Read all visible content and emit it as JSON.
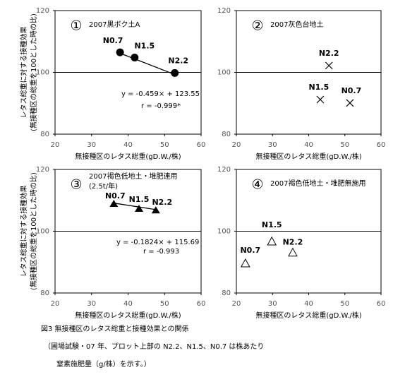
{
  "chart_data": [
    {
      "type": "scatter",
      "panel_label": "①",
      "title": "2007黒ボク土A",
      "marker": "filled-circle",
      "x": [
        37.8,
        41.8,
        52.8
      ],
      "values": [
        106.5,
        104.8,
        99.8
      ],
      "point_labels": [
        "N0.7",
        "N1.5",
        "N2.2"
      ],
      "fit": {
        "x": [
          37.8,
          52.8
        ],
        "values": [
          106.2,
          99.3
        ]
      },
      "annotations": [
        "y = -0.459× + 123.55",
        "r = -0.999*"
      ],
      "xlim": [
        20,
        60
      ],
      "xticks": [
        20,
        30,
        40,
        50,
        60
      ],
      "ylim": [
        80,
        120
      ],
      "yticks": [
        80,
        100,
        120
      ],
      "hline": 100,
      "ylabel": [
        "レタス総重に対する接種効果",
        "(無接種区の総重を100とした時の比)"
      ],
      "xlabel": "無接種区のレタス総重(gD.W./株)"
    },
    {
      "type": "scatter",
      "panel_label": "②",
      "title": "2007灰色台地土",
      "marker": "x",
      "x": [
        51.4,
        43.2,
        45.6
      ],
      "values": [
        90.1,
        91.2,
        102.2
      ],
      "point_labels": [
        "N0.7",
        "N1.5",
        "N2.2"
      ],
      "xlim": [
        20,
        60
      ],
      "xticks": [
        20,
        30,
        40,
        50,
        60
      ],
      "ylim": [
        80,
        120
      ],
      "yticks": [
        80,
        100,
        120
      ],
      "hline": 100,
      "xlabel": "無接種区のレタス総重(gD.W./株)"
    },
    {
      "type": "scatter",
      "panel_label": "③",
      "title": "2007褐色低地土・堆肥連用",
      "subtitle": "(2.5t/年)",
      "marker": "filled-triangle",
      "x": [
        36.1,
        43,
        47.6
      ],
      "values": [
        108.8,
        107.2,
        106.7
      ],
      "point_labels": [
        "N0.7",
        "N1.5",
        "N2.2"
      ],
      "fit": {
        "x": [
          36.1,
          47.6
        ],
        "values": [
          109.1,
          107
        ]
      },
      "annotations": [
        "y = -0.1824× + 115.69",
        "r = -0.993"
      ],
      "xlim": [
        20,
        60
      ],
      "xticks": [
        20,
        30,
        40,
        50,
        60
      ],
      "ylim": [
        80,
        120
      ],
      "yticks": [
        80,
        100,
        120
      ],
      "hline": 100,
      "ylabel": [
        "レタス総重に対する接種効果",
        "(無接種区の総重を100とした時の比)"
      ],
      "xlabel": "無接種区のレタス総重(gD.W./株)"
    },
    {
      "type": "scatter",
      "panel_label": "④",
      "title": "2007褐色低地土・堆肥無施用",
      "marker": "open-triangle",
      "x": [
        22.5,
        29.8,
        35.6
      ],
      "values": [
        89.6,
        96.7,
        93.1
      ],
      "point_labels": [
        "N0.7",
        "N1.5",
        "N2.2"
      ],
      "xlim": [
        20,
        60
      ],
      "xticks": [
        20,
        30,
        40,
        50,
        60
      ],
      "ylim": [
        80,
        120
      ],
      "yticks": [
        80,
        100,
        120
      ],
      "hline": 100,
      "xlabel": "無接種区のレタス総重(gD.W./株)"
    }
  ],
  "caption": [
    "図3 無接種区のレタス総重と接種効果との関係",
    "（圃場試験・07 年、プロット上部の N2.2、N1.5、N0.7 は株あたり",
    "窒素施肥量（g/株）を示す。）"
  ]
}
